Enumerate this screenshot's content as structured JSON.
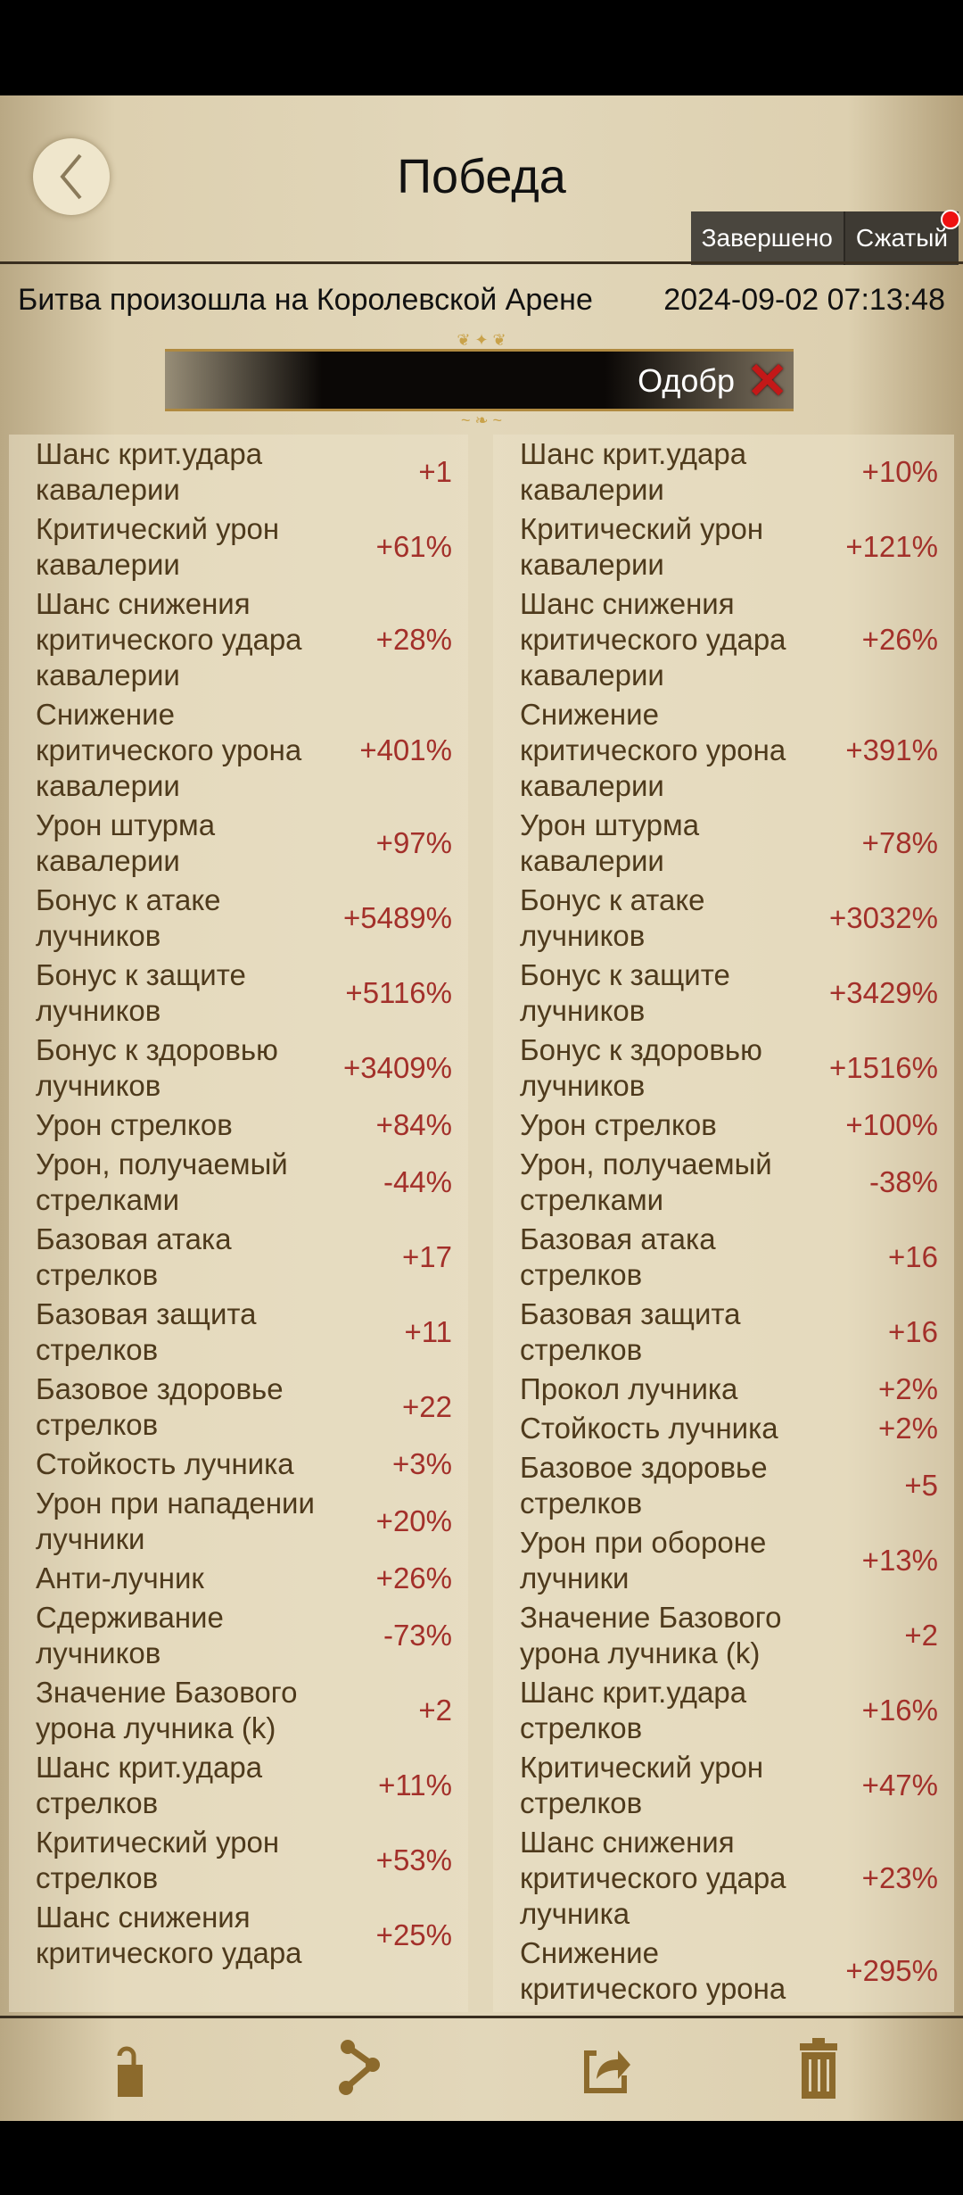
{
  "header": {
    "title": "Победа",
    "tabs": [
      "Завершено",
      "Сжатый"
    ],
    "notification_color": "#e11111"
  },
  "subtitle": {
    "location": "Битва произошла на Королевской Арене",
    "datetime": "2024-09-02  07:13:48"
  },
  "overlay": {
    "text": "Одобр"
  },
  "left": [
    {
      "label": "Шанс крит.удара\nкавалерии",
      "value": "+1"
    },
    {
      "label": "Критический урон\nкавалерии",
      "value": "+61%"
    },
    {
      "label": "Шанс снижения\nкритического удара\nкавалерии",
      "value": "+28%"
    },
    {
      "label": "Снижение\nкритического урона\nкавалерии",
      "value": "+401%"
    },
    {
      "label": "Урон штурма\nкавалерии",
      "value": "+97%"
    },
    {
      "label": "Бонус к атаке\nлучников",
      "value": "+5489%"
    },
    {
      "label": "Бонус к защите\nлучников",
      "value": "+5116%"
    },
    {
      "label": "Бонус к здоровью\nлучников",
      "value": "+3409%"
    },
    {
      "label": "Урон стрелков",
      "value": "+84%"
    },
    {
      "label": "Урон, получаемый\nстрелками",
      "value": "-44%"
    },
    {
      "label": "Базовая атака\nстрелков",
      "value": "+17"
    },
    {
      "label": "Базовая защита\nстрелков",
      "value": "+11"
    },
    {
      "label": "Базовое здоровье\nстрелков",
      "value": "+22"
    },
    {
      "label": "Стойкость лучника",
      "value": "+3%"
    },
    {
      "label": "Урон при нападении\nлучники",
      "value": "+20%"
    },
    {
      "label": "Анти-лучник",
      "value": "+26%"
    },
    {
      "label": "Сдерживание\nлучников",
      "value": "-73%"
    },
    {
      "label": "Значение Базового\nурона лучника (k)",
      "value": "+2"
    },
    {
      "label": "Шанс крит.удара\nстрелков",
      "value": "+11%"
    },
    {
      "label": "Критический урон\nстрелков",
      "value": "+53%"
    },
    {
      "label": "Шанс снижения\nкритического удара",
      "value": "+25%"
    }
  ],
  "right": [
    {
      "label": "Шанс крит.удара\nкавалерии",
      "value": "+10%"
    },
    {
      "label": "Критический урон\nкавалерии",
      "value": "+121%"
    },
    {
      "label": "Шанс снижения\nкритического удара\nкавалерии",
      "value": "+26%"
    },
    {
      "label": "Снижение\nкритического урона\nкавалерии",
      "value": "+391%"
    },
    {
      "label": "Урон штурма\nкавалерии",
      "value": "+78%"
    },
    {
      "label": "Бонус к атаке\nлучников",
      "value": "+3032%"
    },
    {
      "label": "Бонус к защите\nлучников",
      "value": "+3429%"
    },
    {
      "label": "Бонус к здоровью\nлучников",
      "value": "+1516%"
    },
    {
      "label": "Урон стрелков",
      "value": "+100%"
    },
    {
      "label": "Урон, получаемый\nстрелками",
      "value": "-38%"
    },
    {
      "label": "Базовая атака\nстрелков",
      "value": "+16"
    },
    {
      "label": "Базовая защита\nстрелков",
      "value": "+16"
    },
    {
      "label": "Прокол лучника",
      "value": "+2%"
    },
    {
      "label": "Стойкость лучника",
      "value": "+2%"
    },
    {
      "label": "Базовое здоровье\nстрелков",
      "value": "+5"
    },
    {
      "label": "Урон при обороне\nлучники",
      "value": "+13%"
    },
    {
      "label": "Значение Базового\nурона лучника (k)",
      "value": "+2"
    },
    {
      "label": "Шанс крит.удара\nстрелков",
      "value": "+16%"
    },
    {
      "label": "Критический урон\nстрелков",
      "value": "+47%"
    },
    {
      "label": "Шанс снижения\nкритического удара\nлучника",
      "value": "+23%"
    },
    {
      "label": "Снижение\nкритического урона",
      "value": "+295%"
    }
  ],
  "toolbar": {
    "icons": [
      "unlock-icon",
      "share-icon",
      "export-icon",
      "trash-icon"
    ],
    "icon_color": "#8c6a2c"
  }
}
